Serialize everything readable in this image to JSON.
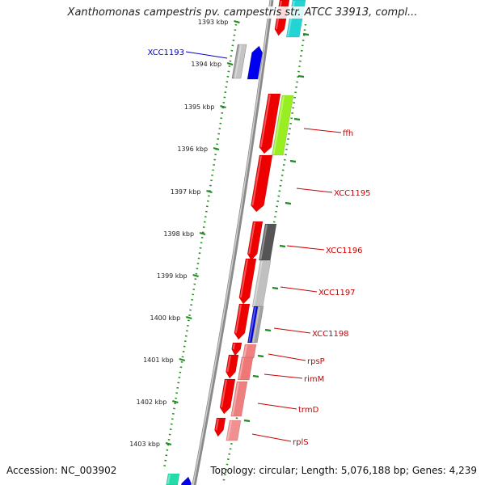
{
  "title": "Xanthomonas campestris pv. campestris str. ATCC 33913, compl...",
  "footer": {
    "accession": "Accession: NC_003902",
    "topology": "Topology: circular; Length: 5,076,188 bp; Genes: 4,239"
  },
  "colors": {
    "backbone": "#8a8a8a",
    "tick": "#1e8c1e",
    "label_red": "#cc0000",
    "label_blue": "#0000cc"
  },
  "ticks": [
    {
      "label": "1393 kbp"
    },
    {
      "label": "1394 kbp"
    },
    {
      "label": "1395 kbp"
    },
    {
      "label": "1396 kbp"
    },
    {
      "label": "1397 kbp"
    },
    {
      "label": "1398 kbp"
    },
    {
      "label": "1399 kbp"
    },
    {
      "label": "1400 kbp"
    },
    {
      "label": "1401 kbp"
    },
    {
      "label": "1402 kbp"
    },
    {
      "label": "1403 kbp"
    }
  ],
  "genes": [
    {
      "name": "XCC1193",
      "color": "blue",
      "side": "left"
    },
    {
      "name": "ffh",
      "color": "red",
      "side": "right"
    },
    {
      "name": "XCC1195",
      "color": "red",
      "side": "right"
    },
    {
      "name": "XCC1196",
      "color": "red",
      "side": "right"
    },
    {
      "name": "XCC1197",
      "color": "red",
      "side": "right"
    },
    {
      "name": "XCC1198",
      "color": "red",
      "side": "right"
    },
    {
      "name": "rpsP",
      "color": "red",
      "side": "right"
    },
    {
      "name": "rimM",
      "color": "red",
      "side": "right"
    },
    {
      "name": "trmD",
      "color": "red",
      "side": "right"
    },
    {
      "name": "rplS",
      "color": "red",
      "side": "right"
    }
  ]
}
